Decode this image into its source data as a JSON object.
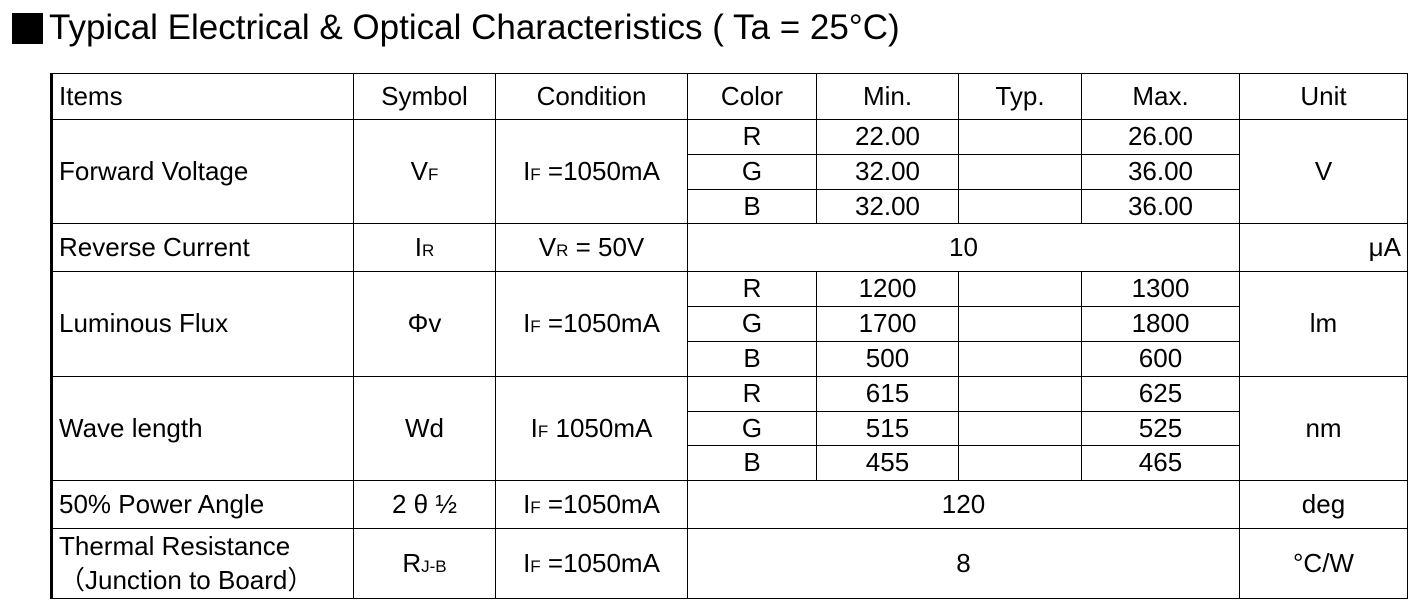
{
  "title": "Typical Electrical & Optical Characteristics ( Ta = 25°C)",
  "table": {
    "header": [
      "Items",
      "Symbol",
      "Condition",
      "Color",
      "Min.",
      "Typ.",
      "Max.",
      "Unit"
    ],
    "groups": [
      {
        "item": [
          "Forward Voltage"
        ],
        "symbol": {
          "main": "V",
          "sub": "F"
        },
        "condition": {
          "main": "I",
          "sub": "F",
          "rest": " =1050mA"
        },
        "lines": [
          {
            "color": "R",
            "min": "22.00",
            "max": "26.00"
          },
          {
            "color": "G",
            "min": "32.00",
            "max": "36.00"
          },
          {
            "color": "B",
            "min": "32.00",
            "max": "36.00"
          }
        ],
        "unit": "V"
      },
      {
        "item": [
          "Reverse Current"
        ],
        "symbol": {
          "main": "I",
          "sub": "R"
        },
        "condition": {
          "main": "V",
          "sub": "R",
          "rest": " = 50V"
        },
        "value": "10",
        "unit": "μA"
      },
      {
        "item": [
          "Luminous Flux"
        ],
        "symbol": {
          "main": "Φv"
        },
        "condition": {
          "main": "I",
          "sub": "F",
          "rest": " =1050mA"
        },
        "lines": [
          {
            "color": "R",
            "min": "1200",
            "max": "1300"
          },
          {
            "color": "G",
            "min": "1700",
            "max": "1800"
          },
          {
            "color": "B",
            "min": "500",
            "max": "600"
          }
        ],
        "unit": "lm"
      },
      {
        "item": [
          "Wave length"
        ],
        "symbol": {
          "main": "Wd"
        },
        "condition": {
          "main": "I",
          "sub": "F",
          "rest": " 1050mA"
        },
        "lines": [
          {
            "color": "R",
            "min": "615",
            "max": "625"
          },
          {
            "color": "G",
            "min": "515",
            "max": "525"
          },
          {
            "color": "B",
            "min": "455",
            "max": "465"
          }
        ],
        "unit": "nm"
      },
      {
        "item": [
          "50% Power Angle"
        ],
        "symbol": {
          "main": "2 θ ½"
        },
        "condition": {
          "main": "I",
          "sub": "F",
          "rest": " =1050mA"
        },
        "value": "120",
        "unit": "deg"
      },
      {
        "item": [
          "Thermal Resistance",
          "（Junction to Board）"
        ],
        "symbol": {
          "main": "R",
          "sub": "J-B"
        },
        "condition": {
          "main": "I",
          "sub": "F",
          "rest": " =1050mA"
        },
        "value": "8",
        "unit": "°C/W"
      }
    ]
  }
}
